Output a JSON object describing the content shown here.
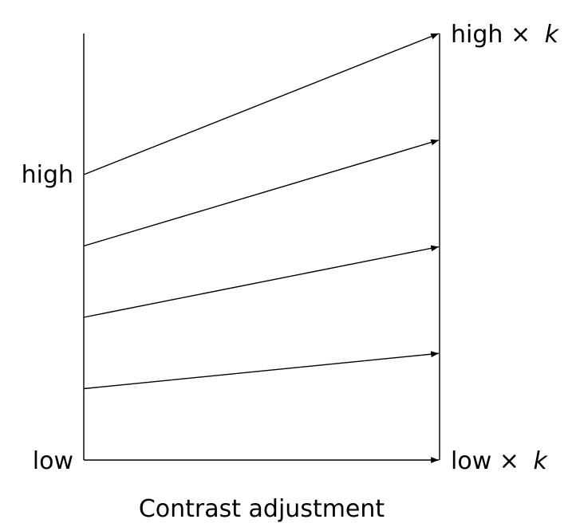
{
  "labels": {
    "high": "high",
    "low": "low",
    "high_times_k_prefix": "high ×",
    "low_times_k_prefix": "low ×",
    "k": "k"
  },
  "caption": "Contrast adjustment",
  "mappings": [
    {
      "from": 1.0,
      "to": 1.0
    },
    {
      "from": 0.75,
      "to": 0.75
    },
    {
      "from": 0.5,
      "to": 0.5
    },
    {
      "from": 0.25,
      "to": 0.25
    },
    {
      "from": 0.0,
      "to": 0.0
    }
  ],
  "colors": {
    "stroke": "#000000",
    "background": "#ffffff"
  }
}
